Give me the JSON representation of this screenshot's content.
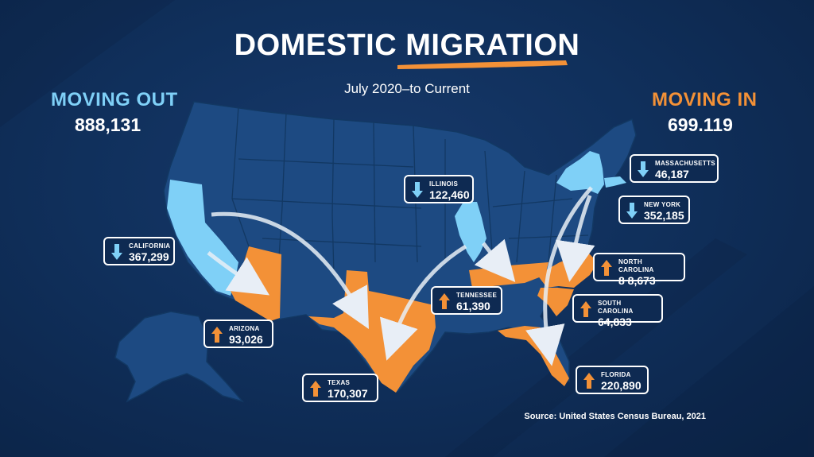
{
  "title": {
    "part1": "DOMESTIC",
    "part2": "MIGRATION"
  },
  "subtitle": "July 2020–to Current",
  "moving_out": {
    "label": "MOVING OUT",
    "value": "888,131"
  },
  "moving_in": {
    "label": "MOVING IN",
    "value": "699.119"
  },
  "states_out": [
    {
      "name": "CALIFORNIA",
      "value": "367,299"
    },
    {
      "name": "ILLINOIS",
      "value": "122,460"
    },
    {
      "name": "MASSACHUSETTS",
      "value": "46,187"
    },
    {
      "name": "NEW YORK",
      "value": "352,185"
    }
  ],
  "states_in": [
    {
      "name": "ARIZONA",
      "value": "93,026"
    },
    {
      "name": "TEXAS",
      "value": "170,307"
    },
    {
      "name": "TENNESSEE",
      "value": "61,390"
    },
    {
      "name": "NORTH CAROLINA",
      "value": "8 8,673"
    },
    {
      "name": "SOUTH CAROLINA",
      "value": "64,833"
    },
    {
      "name": "FLORIDA",
      "value": "220,890"
    }
  ],
  "source": "Source: United States Census Bureau, 2021",
  "colors": {
    "moving_out": "#7fd0f7",
    "moving_in": "#f39137",
    "map": "#1d4a82",
    "background": "#0e2a52"
  },
  "icons": {
    "out": "arrow-down-icon",
    "in": "arrow-up-icon"
  }
}
